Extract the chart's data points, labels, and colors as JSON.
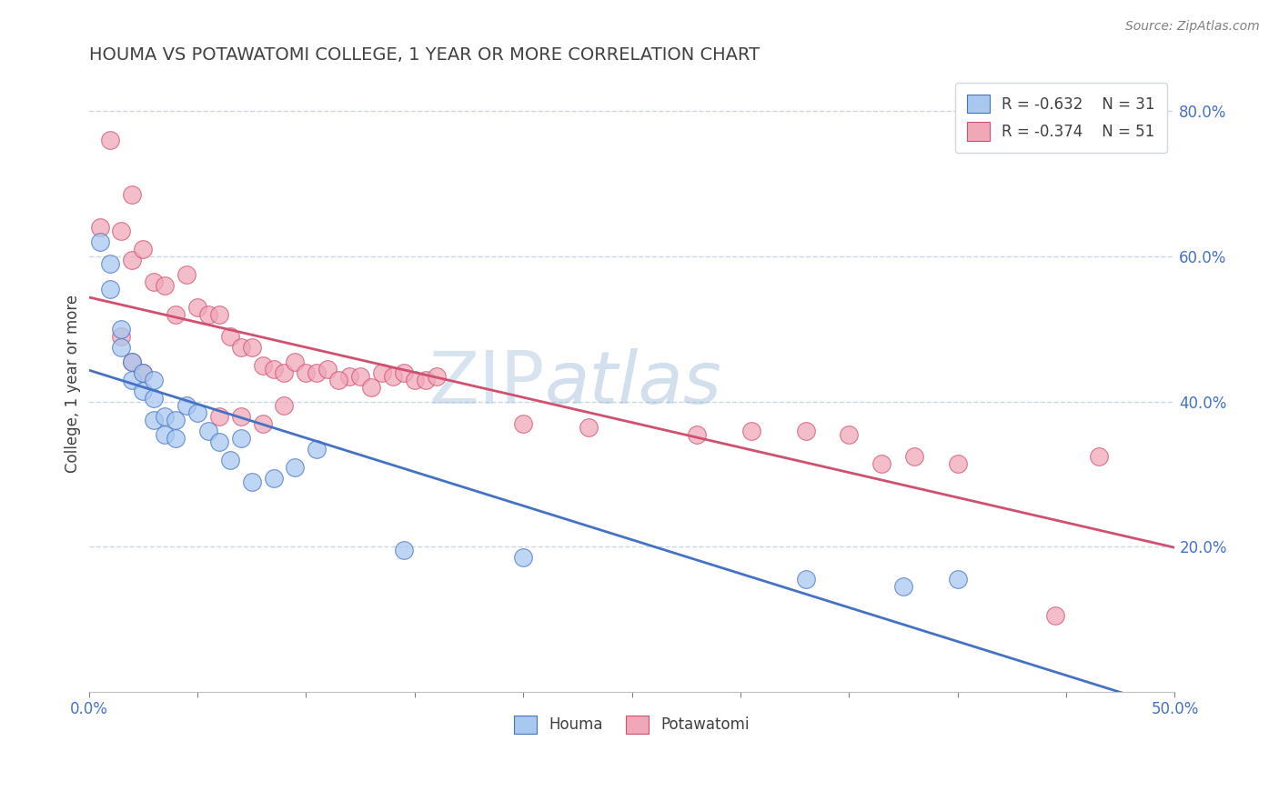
{
  "title": "HOUMA VS POTAWATOMI COLLEGE, 1 YEAR OR MORE CORRELATION CHART",
  "source": "Source: ZipAtlas.com",
  "xlabel": "",
  "ylabel": "College, 1 year or more",
  "xlim": [
    0.0,
    0.5
  ],
  "ylim": [
    0.0,
    0.85
  ],
  "x_tick_positions": [
    0.0,
    0.05,
    0.1,
    0.15,
    0.2,
    0.25,
    0.3,
    0.35,
    0.4,
    0.45,
    0.5
  ],
  "x_tick_labels_sparse": {
    "0": "0.0%",
    "10": "50.0%"
  },
  "y_ticks_right": [
    0.2,
    0.4,
    0.6,
    0.8
  ],
  "y_tick_labels_right": [
    "20.0%",
    "40.0%",
    "60.0%",
    "80.0%"
  ],
  "houma_color": "#a8c8f0",
  "potawatomi_color": "#f0a8b8",
  "line_houma_color": "#4472c4",
  "line_potawatomi_color": "#d05070",
  "legend_r_houma": "R = -0.632",
  "legend_n_houma": "N = 31",
  "legend_r_potawatomi": "R = -0.374",
  "legend_n_potawatomi": "N = 51",
  "houma_x": [
    0.005,
    0.01,
    0.01,
    0.015,
    0.015,
    0.02,
    0.02,
    0.025,
    0.025,
    0.03,
    0.03,
    0.03,
    0.035,
    0.035,
    0.04,
    0.04,
    0.045,
    0.05,
    0.055,
    0.06,
    0.065,
    0.07,
    0.075,
    0.085,
    0.095,
    0.105,
    0.145,
    0.2,
    0.33,
    0.375,
    0.4
  ],
  "houma_y": [
    0.62,
    0.59,
    0.555,
    0.5,
    0.475,
    0.455,
    0.43,
    0.44,
    0.415,
    0.43,
    0.405,
    0.375,
    0.38,
    0.355,
    0.375,
    0.35,
    0.395,
    0.385,
    0.36,
    0.345,
    0.32,
    0.35,
    0.29,
    0.295,
    0.31,
    0.335,
    0.195,
    0.185,
    0.155,
    0.145,
    0.155
  ],
  "potawatomi_x": [
    0.005,
    0.01,
    0.015,
    0.02,
    0.02,
    0.025,
    0.03,
    0.035,
    0.04,
    0.045,
    0.05,
    0.055,
    0.06,
    0.065,
    0.07,
    0.075,
    0.08,
    0.085,
    0.09,
    0.095,
    0.1,
    0.105,
    0.11,
    0.12,
    0.125,
    0.135,
    0.14,
    0.145,
    0.15,
    0.155,
    0.16,
    0.015,
    0.02,
    0.025,
    0.06,
    0.07,
    0.08,
    0.09,
    0.115,
    0.13,
    0.2,
    0.23,
    0.28,
    0.305,
    0.33,
    0.35,
    0.365,
    0.38,
    0.4,
    0.445,
    0.465
  ],
  "potawatomi_y": [
    0.64,
    0.76,
    0.635,
    0.685,
    0.595,
    0.61,
    0.565,
    0.56,
    0.52,
    0.575,
    0.53,
    0.52,
    0.52,
    0.49,
    0.475,
    0.475,
    0.45,
    0.445,
    0.44,
    0.455,
    0.44,
    0.44,
    0.445,
    0.435,
    0.435,
    0.44,
    0.435,
    0.44,
    0.43,
    0.43,
    0.435,
    0.49,
    0.455,
    0.44,
    0.38,
    0.38,
    0.37,
    0.395,
    0.43,
    0.42,
    0.37,
    0.365,
    0.355,
    0.36,
    0.36,
    0.355,
    0.315,
    0.325,
    0.315,
    0.105,
    0.325
  ],
  "background_color": "#ffffff",
  "grid_color": "#c8d8e8",
  "watermark_zip": "ZIP",
  "watermark_atlas": "atlas",
  "title_color": "#404040",
  "axis_label_color": "#404040",
  "tick_label_color": "#4472c4",
  "legend_r_color": "#404040",
  "legend_n_color": "#4472c4"
}
